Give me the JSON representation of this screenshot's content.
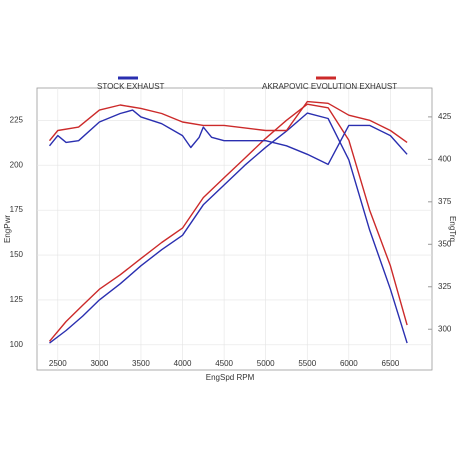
{
  "chart_data": {
    "type": "line",
    "xlabel": "EngSpd  RPM",
    "ylabel": "EngPwr",
    "y2label": "EngTrq",
    "xlim": [
      2250,
      7000
    ],
    "xticks": [
      2500,
      3000,
      3500,
      4000,
      4500,
      5000,
      5500,
      6000,
      6500
    ],
    "ylim": [
      86,
      243
    ],
    "yticks": [
      100,
      125,
      150,
      175,
      200,
      225
    ],
    "y2lim": [
      276,
      442
    ],
    "y2ticks": [
      300,
      325,
      350,
      375,
      400,
      425
    ],
    "grid": true,
    "series": [
      {
        "name": "STOCK EXHAUST",
        "color": "#2a2fb0",
        "x": [
          2400,
          2600,
          2800,
          3000,
          3250,
          3500,
          3750,
          4000,
          4250,
          4500,
          4750,
          5000,
          5250,
          5500,
          5750,
          6000,
          6250,
          6500,
          6700
        ],
        "values": [
          101,
          108,
          116,
          125,
          134,
          144,
          153,
          161,
          178,
          189,
          200,
          210,
          219,
          229,
          226,
          203,
          164,
          131,
          101
        ]
      },
      {
        "name": "AKRAPOVIC EVOLUTION EXHAUST",
        "color": "#cc2a2a",
        "x": [
          2400,
          2600,
          2800,
          3000,
          3250,
          3500,
          3750,
          4000,
          4250,
          4500,
          4750,
          5000,
          5250,
          5500,
          5750,
          6000,
          6250,
          6500,
          6700
        ],
        "values": [
          102,
          113,
          122,
          131,
          139,
          148,
          157,
          165,
          182,
          193,
          204,
          215,
          225,
          234,
          232,
          214,
          175,
          144,
          111
        ]
      },
      {
        "color": "#2a2fb0",
        "axis": "y2",
        "x": [
          2400,
          2500,
          2600,
          2750,
          3000,
          3250,
          3400,
          3500,
          3750,
          4000,
          4100,
          4200,
          4250,
          4350,
          4500,
          5000,
          5250,
          5500,
          5750,
          6000,
          6250,
          6500,
          6700
        ],
        "values": [
          408,
          414,
          410,
          411,
          422,
          427,
          429,
          425,
          421,
          414,
          407,
          413,
          419,
          413,
          411,
          411,
          408,
          403,
          397,
          420,
          420,
          414,
          403
        ]
      },
      {
        "color": "#cc2a2a",
        "axis": "y2",
        "x": [
          2400,
          2500,
          2750,
          3000,
          3250,
          3500,
          3750,
          4000,
          4250,
          4500,
          5000,
          5250,
          5500,
          5750,
          6000,
          6250,
          6500,
          6700
        ],
        "values": [
          411,
          417,
          419,
          429,
          432,
          430,
          427,
          422,
          420,
          420,
          417,
          417,
          434,
          433,
          426,
          423,
          417,
          410
        ]
      }
    ]
  }
}
